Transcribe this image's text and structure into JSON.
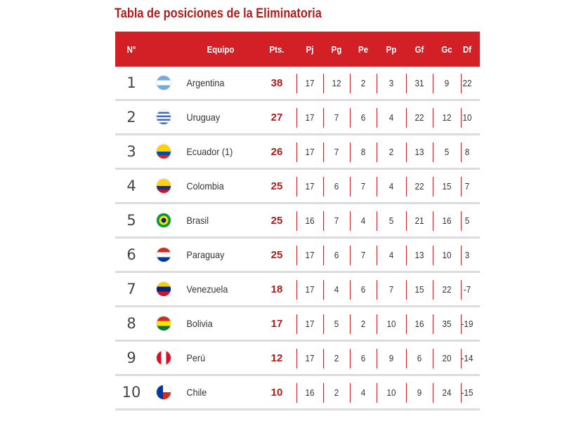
{
  "title": "Tabla de posiciones de la Eliminatoria",
  "headers": {
    "pos": "N°",
    "team": "Equipo",
    "pts": "Pts.",
    "pj": "Pj",
    "pg": "Pg",
    "pe": "Pe",
    "pp": "Pp",
    "gf": "Gf",
    "gc": "Gc",
    "df": "Df"
  },
  "colors": {
    "header_bg": "#d31f26",
    "title": "#b31b1b",
    "points": "#b31b1b",
    "separator": "#d31f26"
  },
  "rows": [
    {
      "pos": "1",
      "team": "Argentina",
      "flag": "argentina-flag-icon",
      "pts": "38",
      "pj": "17",
      "pg": "12",
      "pe": "2",
      "pp": "3",
      "gf": "31",
      "gc": "9",
      "df": "22"
    },
    {
      "pos": "2",
      "team": "Uruguay",
      "flag": "uruguay-flag-icon",
      "pts": "27",
      "pj": "17",
      "pg": "7",
      "pe": "6",
      "pp": "4",
      "gf": "22",
      "gc": "12",
      "df": "10"
    },
    {
      "pos": "3",
      "team": "Ecuador (1)",
      "flag": "ecuador-flag-icon",
      "pts": "26",
      "pj": "17",
      "pg": "7",
      "pe": "8",
      "pp": "2",
      "gf": "13",
      "gc": "5",
      "df": "8"
    },
    {
      "pos": "4",
      "team": "Colombia",
      "flag": "colombia-flag-icon",
      "pts": "25",
      "pj": "17",
      "pg": "6",
      "pe": "7",
      "pp": "4",
      "gf": "22",
      "gc": "15",
      "df": "7"
    },
    {
      "pos": "5",
      "team": "Brasil",
      "flag": "brasil-flag-icon",
      "pts": "25",
      "pj": "16",
      "pg": "7",
      "pe": "4",
      "pp": "5",
      "gf": "21",
      "gc": "16",
      "df": "5"
    },
    {
      "pos": "6",
      "team": "Paraguay",
      "flag": "paraguay-flag-icon",
      "pts": "25",
      "pj": "17",
      "pg": "6",
      "pe": "7",
      "pp": "4",
      "gf": "13",
      "gc": "10",
      "df": "3"
    },
    {
      "pos": "7",
      "team": "Venezuela",
      "flag": "venezuela-flag-icon",
      "pts": "18",
      "pj": "17",
      "pg": "4",
      "pe": "6",
      "pp": "7",
      "gf": "15",
      "gc": "22",
      "df": "-7"
    },
    {
      "pos": "8",
      "team": "Bolivia",
      "flag": "bolivia-flag-icon",
      "pts": "17",
      "pj": "17",
      "pg": "5",
      "pe": "2",
      "pp": "10",
      "gf": "16",
      "gc": "35",
      "df": "-19"
    },
    {
      "pos": "9",
      "team": "Perú",
      "flag": "peru-flag-icon",
      "pts": "12",
      "pj": "17",
      "pg": "2",
      "pe": "6",
      "pp": "9",
      "gf": "6",
      "gc": "20",
      "df": "-14"
    },
    {
      "pos": "10",
      "team": "Chile",
      "flag": "chile-flag-icon",
      "pts": "10",
      "pj": "16",
      "pg": "2",
      "pe": "4",
      "pp": "10",
      "gf": "9",
      "gc": "24",
      "df": "-15"
    }
  ]
}
